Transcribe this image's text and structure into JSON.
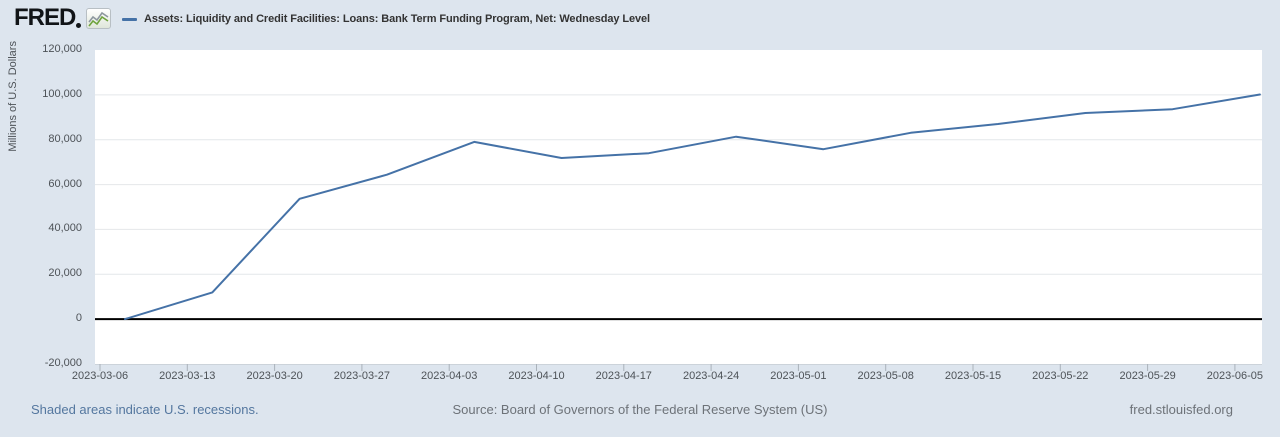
{
  "header": {
    "logo": "FRED"
  },
  "chart_data": {
    "type": "line",
    "title": "Assets: Liquidity and Credit Facilities: Loans: Bank Term Funding Program, Net: Wednesday Level",
    "ylabel": "Millions of U.S. Dollars",
    "ylim": [
      -20000,
      120000
    ],
    "y_tick_step": 20000,
    "y_tick_labels": [
      "120,000",
      "100,000",
      "80,000",
      "60,000",
      "40,000",
      "20,000",
      "0",
      "-20,000"
    ],
    "x_tick_labels": [
      "2023-03-06",
      "2023-03-13",
      "2023-03-20",
      "2023-03-27",
      "2023-04-03",
      "2023-04-10",
      "2023-04-17",
      "2023-04-24",
      "2023-05-01",
      "2023-05-08",
      "2023-05-15",
      "2023-05-22",
      "2023-05-29",
      "2023-06-05"
    ],
    "x": [
      "2023-03-08",
      "2023-03-15",
      "2023-03-22",
      "2023-03-29",
      "2023-04-05",
      "2023-04-12",
      "2023-04-19",
      "2023-04-26",
      "2023-05-03",
      "2023-05-10",
      "2023-05-17",
      "2023-05-24",
      "2023-05-31",
      "2023-06-07"
    ],
    "values": [
      0,
      11943,
      53669,
      64403,
      79021,
      71837,
      73982,
      81327,
      75778,
      83101,
      87006,
      91907,
      93615,
      100161
    ],
    "series_color": "#4572a7",
    "grid": "horizontal",
    "zero_line": true,
    "legend_position": "top-left"
  },
  "footer": {
    "recessions_link": "Shaded areas indicate U.S. recessions.",
    "source": "Source: Board of Governors of the Federal Reserve System (US)",
    "site_link": "fred.stlouisfed.org"
  },
  "colors": {
    "background": "#dde5ee",
    "plot_background": "#ffffff",
    "series": "#4572a7",
    "gridline": "#e4e7ea",
    "zero_line": "#000000",
    "axis_line": "#ccd3da",
    "tick": "#aab2ba",
    "axis_text": "#4d5257",
    "title_text": "#333333",
    "link": "#54779f",
    "footer_text": "#6d7278"
  }
}
